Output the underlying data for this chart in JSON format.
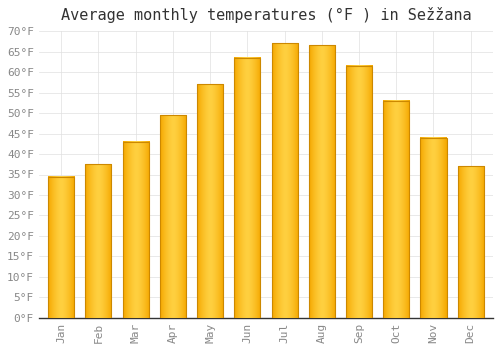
{
  "title": "Average monthly temperatures (°F ) in Sežžana",
  "months": [
    "Jan",
    "Feb",
    "Mar",
    "Apr",
    "May",
    "Jun",
    "Jul",
    "Aug",
    "Sep",
    "Oct",
    "Nov",
    "Dec"
  ],
  "values": [
    34.5,
    37.5,
    43.0,
    49.5,
    57.0,
    63.5,
    67.0,
    66.5,
    61.5,
    53.0,
    44.0,
    37.0
  ],
  "bar_color_center": "#FFD040",
  "bar_color_edge": "#F5A800",
  "bar_outline_color": "#CC8800",
  "background_color": "#ffffff",
  "grid_color": "#e0e0e0",
  "ylim": [
    0,
    70
  ],
  "ytick_step": 5,
  "title_fontsize": 11,
  "tick_fontsize": 8,
  "tick_color": "#888888",
  "font_family": "monospace"
}
